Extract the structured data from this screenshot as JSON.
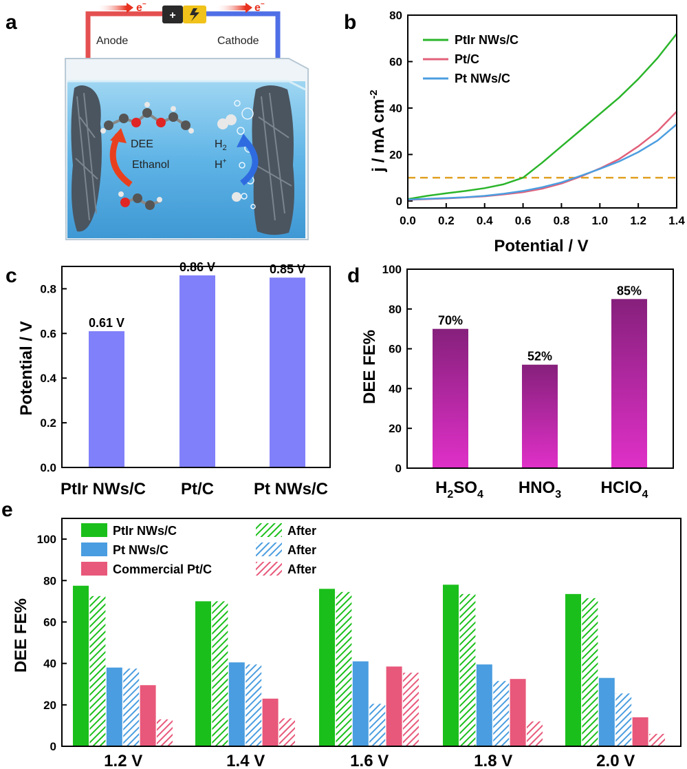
{
  "panel_labels": {
    "a": "a",
    "b": "b",
    "c": "c",
    "d": "d",
    "e": "e"
  },
  "scheme": {
    "electron": "e",
    "electron_sup": "−",
    "anode": "Anode",
    "cathode": "Cathode",
    "dee": "DEE",
    "ethanol": "Ethanol",
    "h2": "H",
    "h2_sub": "2",
    "hplus": "H",
    "hplus_sup": "+"
  },
  "chart_data": [
    {
      "id": "b",
      "type": "line",
      "xlabel": "Potential / V",
      "ylabel_main": "j / mA cm",
      "ylabel_sup": "-2",
      "xlim": [
        0.0,
        1.4
      ],
      "ylim": [
        -3,
        80
      ],
      "xticks": [
        0.0,
        0.2,
        0.4,
        0.6,
        0.8,
        1.0,
        1.2,
        1.4
      ],
      "xtick_labels": [
        "0.0",
        "0.2",
        "0.4",
        "0.6",
        "0.8",
        "1.0",
        "1.2",
        "1.4"
      ],
      "yticks": [
        0,
        20,
        40,
        60,
        80
      ],
      "ytick_labels": [
        "0",
        "20",
        "40",
        "60",
        "80"
      ],
      "hline": {
        "y": 10,
        "color": "#e0a020"
      },
      "series": [
        {
          "name": "PtIr NWs/C",
          "color": "#2ab52a",
          "x": [
            0.0,
            0.1,
            0.2,
            0.3,
            0.4,
            0.5,
            0.6,
            0.7,
            0.8,
            0.9,
            1.0,
            1.1,
            1.2,
            1.3,
            1.4
          ],
          "y": [
            0.8,
            2.2,
            3.3,
            4.3,
            5.5,
            7.2,
            10.0,
            16.5,
            23.5,
            30.5,
            37.5,
            44.5,
            52.5,
            61.5,
            72.0
          ]
        },
        {
          "name": "Pt/C",
          "color": "#e2607a",
          "x": [
            0.0,
            0.1,
            0.2,
            0.3,
            0.4,
            0.5,
            0.6,
            0.7,
            0.8,
            0.9,
            1.0,
            1.1,
            1.2,
            1.3,
            1.4
          ],
          "y": [
            0.5,
            0.8,
            1.1,
            1.5,
            2.0,
            2.8,
            3.8,
            5.3,
            7.5,
            10.5,
            14.0,
            18.0,
            23.5,
            30.0,
            38.5
          ]
        },
        {
          "name": "Pt NWs/C",
          "color": "#4c9ee0",
          "x": [
            0.0,
            0.1,
            0.2,
            0.3,
            0.4,
            0.5,
            0.6,
            0.7,
            0.8,
            0.9,
            1.0,
            1.1,
            1.2,
            1.3,
            1.4
          ],
          "y": [
            0.6,
            0.9,
            1.2,
            1.6,
            2.2,
            3.1,
            4.3,
            5.9,
            8.0,
            10.8,
            13.8,
            17.0,
            21.0,
            26.0,
            33.0
          ]
        }
      ]
    },
    {
      "id": "c",
      "type": "bar",
      "ylabel": "Potential / V",
      "ylim": [
        0.0,
        0.9
      ],
      "yticks": [
        0.0,
        0.2,
        0.4,
        0.6,
        0.8
      ],
      "ytick_labels": [
        "0.0",
        "0.2",
        "0.4",
        "0.6",
        "0.8"
      ],
      "color": "#8080fa",
      "categories": [
        "PtIr NWs/C",
        "Pt/C",
        "Pt NWs/C"
      ],
      "values": [
        0.61,
        0.86,
        0.85
      ],
      "data_labels": [
        "0.61 V",
        "0.86 V",
        "0.85 V"
      ]
    },
    {
      "id": "d",
      "type": "bar",
      "ylabel": "DEE FE%",
      "ylim": [
        0,
        100
      ],
      "yticks": [
        0,
        20,
        40,
        60,
        80,
        100
      ],
      "ytick_labels": [
        "0",
        "20",
        "40",
        "60",
        "80",
        "100"
      ],
      "gradient": [
        "#86207c",
        "#e030c8"
      ],
      "categories": [
        {
          "main": "H",
          "sub1": "2",
          "mid": "SO",
          "sub2": "4"
        },
        {
          "main": "HNO",
          "sub1": "3",
          "mid": "",
          "sub2": ""
        },
        {
          "main": "HClO",
          "sub1": "4",
          "mid": "",
          "sub2": ""
        }
      ],
      "values": [
        70,
        52,
        85
      ],
      "data_labels": [
        "70%",
        "52%",
        "85%"
      ]
    },
    {
      "id": "e",
      "type": "bar",
      "ylabel": "DEE FE%",
      "ylim": [
        0,
        110
      ],
      "yticks": [
        0,
        20,
        40,
        60,
        80,
        100
      ],
      "ytick_labels": [
        "0",
        "20",
        "40",
        "60",
        "80",
        "100"
      ],
      "categories": [
        "1.2 V",
        "1.4 V",
        "1.6 V",
        "1.8 V",
        "2.0 V"
      ],
      "series": [
        {
          "name": "PtIr NWs/C",
          "color": "#1bbf1b",
          "hatched": false,
          "values": [
            77.5,
            70,
            76,
            78,
            73.5
          ]
        },
        {
          "name": "After",
          "color": "#1bbf1b",
          "hatched": true,
          "values": [
            72.5,
            70,
            74.5,
            73.5,
            71.5
          ]
        },
        {
          "name": "Pt NWs/C",
          "color": "#4a9de0",
          "hatched": false,
          "values": [
            38,
            40.5,
            41,
            39.5,
            33
          ]
        },
        {
          "name": "After",
          "color": "#4a9de0",
          "hatched": true,
          "values": [
            37.5,
            39.5,
            20.5,
            31.5,
            25.5
          ]
        },
        {
          "name": "Commercial Pt/C",
          "color": "#e8587a",
          "hatched": false,
          "values": [
            29.5,
            23,
            38.5,
            32.5,
            14
          ]
        },
        {
          "name": "After",
          "color": "#e8587a",
          "hatched": true,
          "values": [
            13,
            13.5,
            35.5,
            12,
            6
          ]
        }
      ]
    }
  ]
}
